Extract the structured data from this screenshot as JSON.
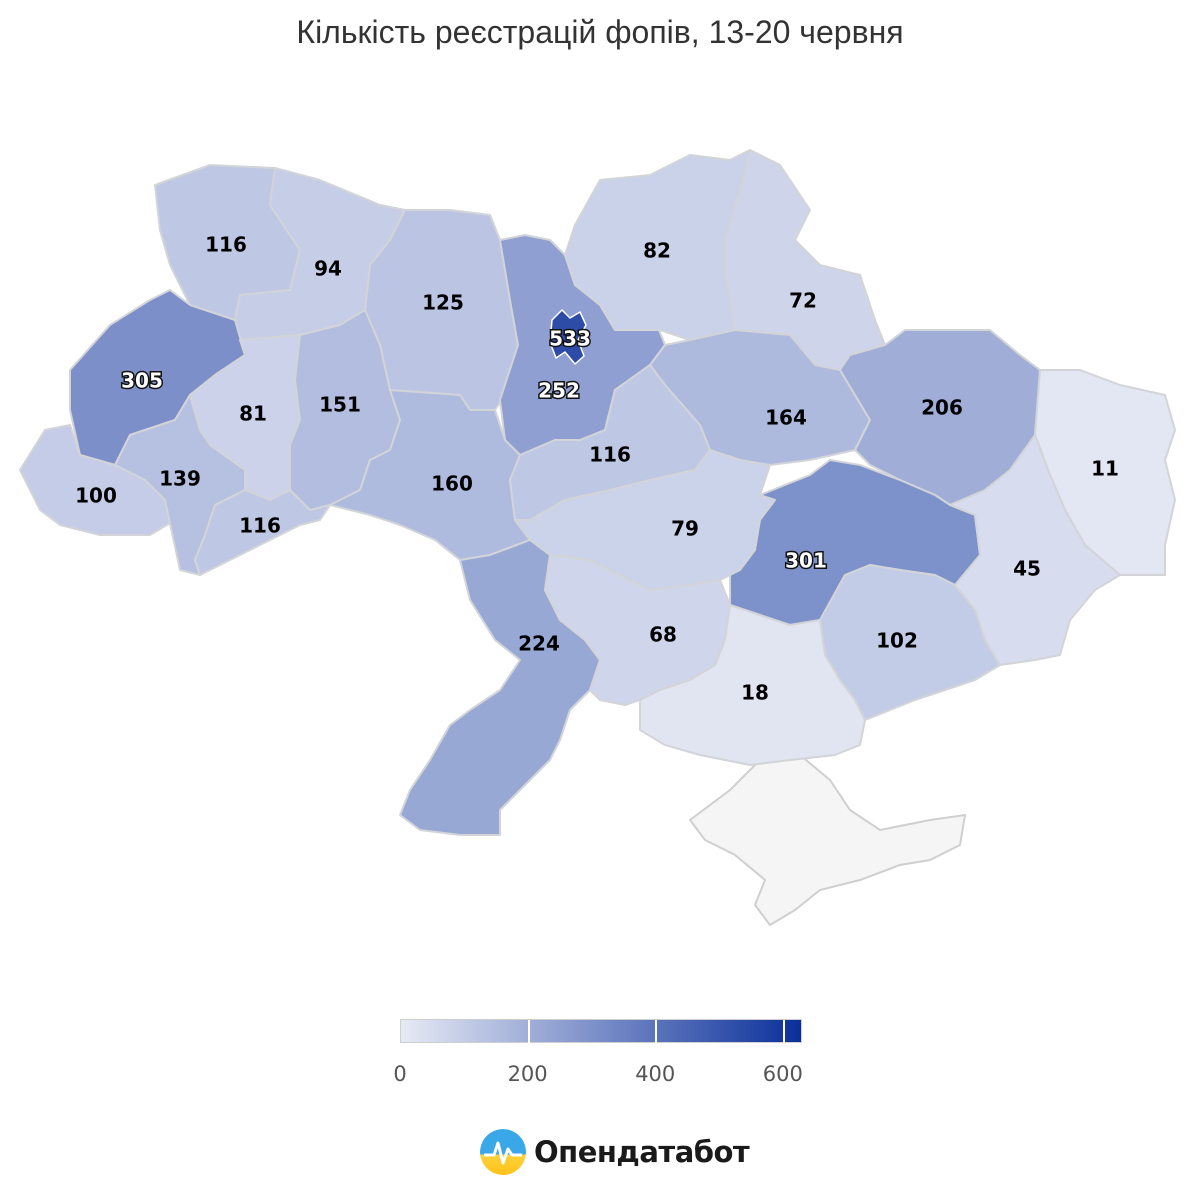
{
  "title": "Кількість реєстрацій фопів, 13-20 червня",
  "colors": {
    "scale_min": "#e7eaf5",
    "scale_max": "#0a2f9a",
    "no_data": "#f5f5f5"
  },
  "legend": {
    "min": 0,
    "max": 630,
    "ticks": [
      "0",
      "200",
      "400",
      "600"
    ]
  },
  "brand": {
    "name": "Опендатабот"
  },
  "chart_data": {
    "type": "choropleth",
    "regions": [
      {
        "id": "volyn",
        "value": 116
      },
      {
        "id": "rivne",
        "value": 94
      },
      {
        "id": "zhytomyr",
        "value": 125
      },
      {
        "id": "kyiv-oblast",
        "value": 252
      },
      {
        "id": "kyiv-city",
        "value": 533
      },
      {
        "id": "chernihiv",
        "value": 82
      },
      {
        "id": "sumy",
        "value": 72
      },
      {
        "id": "lviv",
        "value": 305
      },
      {
        "id": "ternopil",
        "value": 81
      },
      {
        "id": "khmelnytskyi",
        "value": 151
      },
      {
        "id": "poltava",
        "value": 164
      },
      {
        "id": "kharkiv",
        "value": 206
      },
      {
        "id": "luhansk",
        "value": 11
      },
      {
        "id": "zakarpattia",
        "value": 100
      },
      {
        "id": "ivano-frankivsk",
        "value": 139
      },
      {
        "id": "chernivtsi",
        "value": 116
      },
      {
        "id": "vinnytsia",
        "value": 160
      },
      {
        "id": "cherkasy",
        "value": 116
      },
      {
        "id": "kirovohrad",
        "value": 79
      },
      {
        "id": "dnipropetrovsk",
        "value": 301
      },
      {
        "id": "donetsk",
        "value": 45
      },
      {
        "id": "odesa",
        "value": 224
      },
      {
        "id": "mykolaiv",
        "value": 68
      },
      {
        "id": "zaporizhzhia",
        "value": 102
      },
      {
        "id": "kherson",
        "value": 18
      }
    ]
  }
}
